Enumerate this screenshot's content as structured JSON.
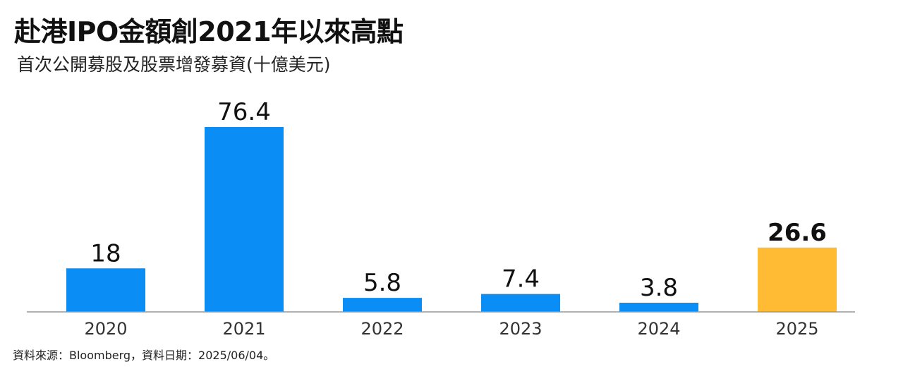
{
  "chart_data": {
    "type": "bar",
    "title": "赴港IPO金額創2021年以來高點",
    "subtitle": "首次公開募股及股票增發募資(十億美元)",
    "categories": [
      "2020",
      "2021",
      "2022",
      "2023",
      "2024",
      "2025"
    ],
    "values": [
      18,
      76.4,
      5.8,
      7.4,
      3.8,
      26.6
    ],
    "data_labels": [
      "18",
      "76.4",
      "5.8",
      "7.4",
      "3.8",
      "26.6"
    ],
    "highlight_index": 5,
    "colors": {
      "bar": "#0A8EF5",
      "highlight": "#FFBB33",
      "axis": "#999999"
    },
    "xlabel": "",
    "ylabel": "",
    "ylim": [
      0,
      76.4
    ],
    "grid": false,
    "legend": "none"
  },
  "footer": {
    "source": "資料來源：Bloomberg，資料日期：2025/06/04。"
  }
}
